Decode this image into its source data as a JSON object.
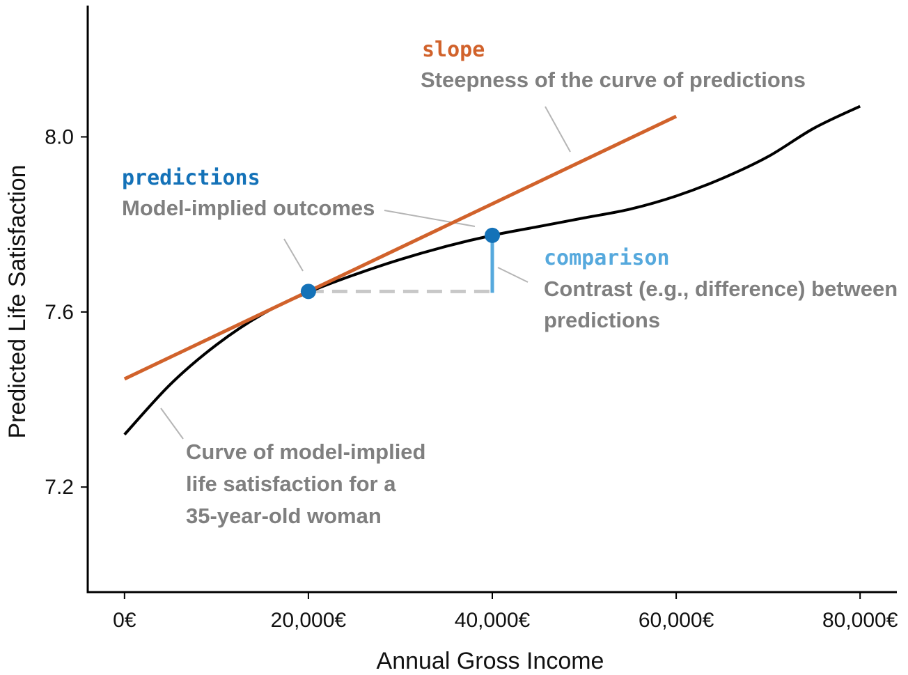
{
  "chart_data": {
    "type": "line",
    "xlabel": "Annual Gross Income",
    "ylabel": "Predicted Life Satisfaction",
    "xlim": [
      -4000,
      84000
    ],
    "ylim": [
      6.96,
      8.3
    ],
    "x_ticks": [
      0,
      20000,
      40000,
      60000,
      80000
    ],
    "x_tick_labels": [
      "0€",
      "20,000€",
      "40,000€",
      "60,000€",
      "80,000€"
    ],
    "y_ticks": [
      7.2,
      7.6,
      8.0
    ],
    "y_tick_labels": [
      "7.2",
      "7.6",
      "8.0"
    ],
    "grid": false,
    "series": [
      {
        "name": "Curve of model-implied life satisfaction for a 35-year-old woman",
        "color": "#000000",
        "x": [
          0,
          5000,
          10000,
          15000,
          20000,
          25000,
          30000,
          35000,
          40000,
          45000,
          50000,
          55000,
          60000,
          65000,
          70000,
          75000,
          80000
        ],
        "y": [
          7.32,
          7.435,
          7.525,
          7.595,
          7.645,
          7.685,
          7.72,
          7.75,
          7.775,
          7.795,
          7.815,
          7.835,
          7.865,
          7.905,
          7.955,
          8.02,
          8.07
        ]
      },
      {
        "name": "slope",
        "color": "#d1622b",
        "x": [
          0,
          60000
        ],
        "y": [
          7.447,
          8.047
        ]
      }
    ],
    "points": [
      {
        "name": "prediction-20000",
        "x": 20000,
        "y": 7.647,
        "color": "#1472b8"
      },
      {
        "name": "prediction-40000",
        "x": 40000,
        "y": 7.775,
        "color": "#1472b8"
      }
    ],
    "comparison": {
      "x_from": 20000,
      "x_to": 40000,
      "y_from": 7.647,
      "y_to": 7.775,
      "dash_color": "#c8c8c8",
      "bar_color": "#56a9dd"
    },
    "annotations": {
      "slope": {
        "title": "slope",
        "title_color": "#d1622b",
        "lines": [
          "Steepness of the curve of predictions"
        ]
      },
      "predictions": {
        "title": "predictions",
        "title_color": "#1472b8",
        "lines": [
          "Model-implied outcomes"
        ]
      },
      "comparison": {
        "title": "comparison",
        "title_color": "#56a9dd",
        "lines": [
          "Contrast (e.g., difference) between",
          "predictions"
        ]
      },
      "curve": {
        "lines": [
          "Curve of model-implied",
          "life satisfaction for a",
          "35-year-old woman"
        ]
      }
    }
  }
}
